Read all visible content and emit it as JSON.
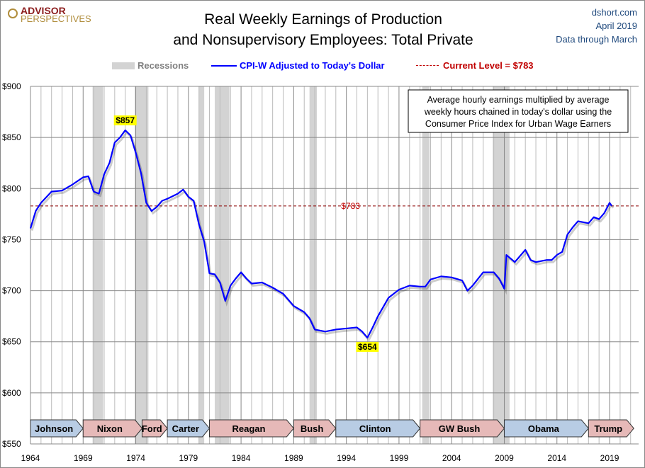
{
  "header": {
    "logo": {
      "line1": "ADVISOR",
      "line2": "PERSPECTIVES"
    },
    "title_line1": "Real Weekly Earnings of Production",
    "title_line2": "and Nonsupervisory Employees: Total Private",
    "source": "dshort.com",
    "date": "April 2019",
    "data_through": "Data through March"
  },
  "legend": {
    "recessions": "Recessions",
    "series": "CPI-W Adjusted to Today's Dollar",
    "current": "Current Level = $783"
  },
  "colors": {
    "series": "#0000ff",
    "recession": "#d3d3d3",
    "current": "#c00000",
    "democrat": "#b8cce4",
    "republican": "#e6b9b8",
    "label_bg": "#ffff00"
  },
  "chart_data": {
    "type": "line",
    "title": "Real Weekly Earnings of Production and Nonsupervisory Employees: Total Private",
    "xlim": [
      1964,
      2021.8
    ],
    "ylim": [
      550,
      900
    ],
    "yticks": [
      550,
      600,
      650,
      700,
      750,
      800,
      850,
      900
    ],
    "ytick_labels": [
      "$550",
      "$600",
      "$650",
      "$700",
      "$750",
      "$800",
      "$850",
      "$900"
    ],
    "xticks": [
      1964,
      1969,
      1974,
      1979,
      1984,
      1989,
      1994,
      1999,
      2004,
      2009,
      2014,
      2019
    ],
    "xtick_labels": [
      "1964",
      "1969",
      "1974",
      "1979",
      "1984",
      "1989",
      "1994",
      "1999",
      "2004",
      "2009",
      "2014",
      "2019"
    ],
    "grid": true,
    "legend_placement": "top",
    "series": [
      {
        "name": "CPI-W Adjusted to Today's Dollar",
        "x": [
          1964,
          1964.5,
          1965,
          1966,
          1967,
          1968,
          1969,
          1969.5,
          1970,
          1970.5,
          1971,
          1971.5,
          1972,
          1972.5,
          1973,
          1973.5,
          1974,
          1974.5,
          1975,
          1975.5,
          1976,
          1976.5,
          1977,
          1978,
          1978.5,
          1979,
          1979.5,
          1980,
          1980.5,
          1981,
          1981.5,
          1982,
          1982.5,
          1983,
          1983.5,
          1984,
          1984.5,
          1985,
          1986,
          1987,
          1988,
          1989,
          1990,
          1990.5,
          1991,
          1992,
          1993,
          1994,
          1995,
          1995.5,
          1996,
          1996.5,
          1997,
          1998,
          1999,
          2000,
          2001,
          2001.5,
          2002,
          2003,
          2004,
          2005,
          2005.5,
          2006,
          2007,
          2008,
          2008.5,
          2009,
          2009.2,
          2010,
          2011,
          2011.5,
          2012,
          2013,
          2013.5,
          2014,
          2014.5,
          2015,
          2015.5,
          2016,
          2017,
          2017.5,
          2018,
          2018.5,
          2019,
          2019.2
        ],
        "y": [
          761,
          778,
          786,
          797,
          798,
          804,
          811,
          812,
          797,
          795,
          814,
          825,
          845,
          850,
          857,
          852,
          835,
          815,
          786,
          778,
          782,
          788,
          790,
          795,
          799,
          792,
          788,
          765,
          748,
          717,
          716,
          708,
          690,
          705,
          712,
          718,
          712,
          707,
          708,
          703,
          697,
          685,
          679,
          673,
          662,
          660,
          662,
          663,
          664,
          660,
          654,
          664,
          675,
          693,
          701,
          705,
          704,
          704,
          711,
          714,
          713,
          710,
          700,
          705,
          718,
          718,
          712,
          702,
          735,
          728,
          740,
          730,
          728,
          730,
          730,
          735,
          738,
          755,
          762,
          768,
          766,
          772,
          770,
          776,
          786,
          783
        ]
      }
    ],
    "recessions": [
      [
        1969.9,
        1970.9
      ],
      [
        1973.9,
        1975.2
      ],
      [
        1980,
        1980.5
      ],
      [
        1981.5,
        1982.9
      ],
      [
        1990.5,
        1991.2
      ],
      [
        2001.2,
        2001.9
      ],
      [
        2007.9,
        2009.5
      ]
    ],
    "current_level": {
      "value": 783,
      "label": "$783"
    },
    "annotations": [
      {
        "label": "$857",
        "x": 1973,
        "y": 857
      },
      {
        "label": "$654",
        "x": 1996,
        "y": 654
      }
    ],
    "note": [
      "Average hourly earnings multiplied by average",
      "weekly hours chained in today's dollar using the",
      "Consumer Price Index for Urban Wage Earners"
    ],
    "presidents": [
      {
        "name": "Johnson",
        "start": 1964,
        "end": 1969,
        "party": "democrat"
      },
      {
        "name": "Nixon",
        "start": 1969,
        "end": 1974.6,
        "party": "republican"
      },
      {
        "name": "Ford",
        "start": 1974.6,
        "end": 1977,
        "party": "republican"
      },
      {
        "name": "Carter",
        "start": 1977,
        "end": 1981,
        "party": "democrat"
      },
      {
        "name": "Reagan",
        "start": 1981,
        "end": 1989,
        "party": "republican"
      },
      {
        "name": "Bush",
        "start": 1989,
        "end": 1993,
        "party": "republican"
      },
      {
        "name": "Clinton",
        "start": 1993,
        "end": 2001,
        "party": "democrat"
      },
      {
        "name": "GW Bush",
        "start": 2001,
        "end": 2009,
        "party": "republican"
      },
      {
        "name": "Obama",
        "start": 2009,
        "end": 2017,
        "party": "democrat"
      },
      {
        "name": "Trump",
        "start": 2017,
        "end": 2021.3,
        "party": "republican"
      }
    ]
  }
}
